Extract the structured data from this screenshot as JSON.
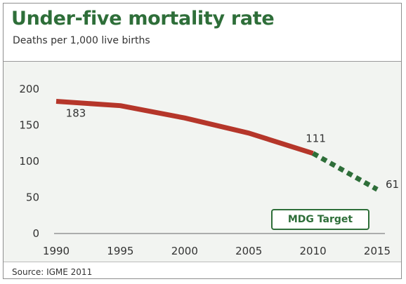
{
  "title": "Under-five mortality rate",
  "subtitle": "Deaths per 1,000 live births",
  "source": "Source: IGME 2011",
  "target_label": "MDG Target",
  "colors": {
    "title": "#2e6e39",
    "actual_series": "#b5362a",
    "target_series": "#2e6e39",
    "plot_background": "#f2f4f1"
  },
  "chart_data": {
    "type": "line",
    "title": "Under-five mortality rate",
    "subtitle": "Deaths per 1,000 live births",
    "xlabel": "",
    "ylabel": "",
    "xlim": [
      1990,
      2015
    ],
    "ylim": [
      0,
      200
    ],
    "x_ticks": [
      1990,
      1995,
      2000,
      2005,
      2010,
      2015
    ],
    "y_ticks": [
      0,
      50,
      100,
      150,
      200
    ],
    "grid": false,
    "series": [
      {
        "style": "solid",
        "x": [
          1990,
          1995,
          2000,
          2005,
          2010
        ],
        "y": [
          183,
          177,
          160,
          139,
          111
        ]
      },
      {
        "style": "dotted",
        "x": [
          2010,
          2015
        ],
        "y": [
          111,
          61
        ]
      }
    ],
    "annotations": [
      {
        "text": "183",
        "x": 1990,
        "y": 183
      },
      {
        "text": "111",
        "x": 2010,
        "y": 111
      },
      {
        "text": "61",
        "x": 2015,
        "y": 61
      }
    ]
  }
}
